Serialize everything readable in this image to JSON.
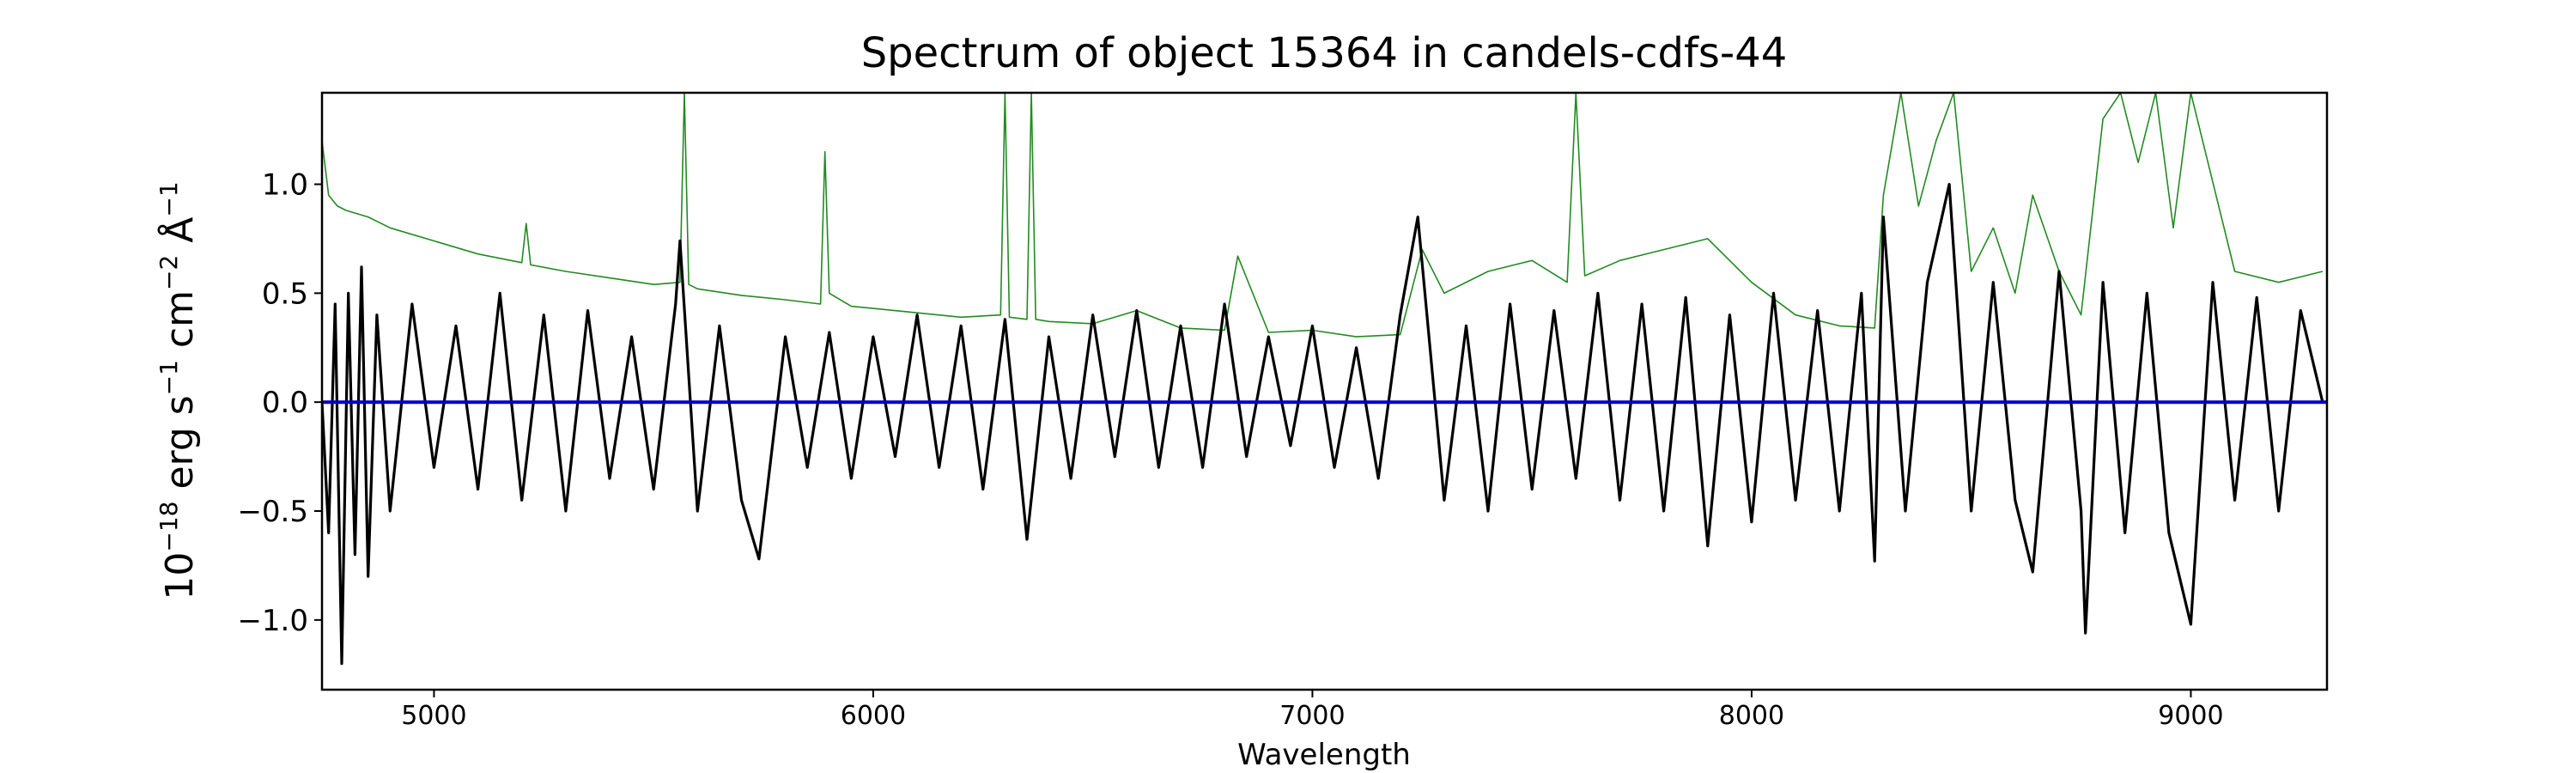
{
  "chart_data": {
    "type": "line",
    "title": "Spectrum of object 15364 in candels-cdfs-44",
    "xlabel": "Wavelength",
    "ylabel": {
      "base": "10",
      "exp1": "−18",
      "mid1": " erg s",
      "exp2": "−1",
      "mid2": " cm",
      "exp3": "−2",
      "mid3": " Å",
      "exp4": "−1"
    },
    "xlim": [
      4745,
      9310
    ],
    "ylim": [
      -1.32,
      1.42
    ],
    "xticks": [
      5000,
      6000,
      7000,
      8000,
      9000
    ],
    "xtick_labels": [
      "5000",
      "6000",
      "7000",
      "8000",
      "9000"
    ],
    "yticks": [
      -1.0,
      -0.5,
      0.0,
      0.5,
      1.0
    ],
    "ytick_labels": [
      "−1.0",
      "−0.5",
      "0.0",
      "0.5",
      "1.0"
    ],
    "grid": false,
    "colors": {
      "flux": "#000000",
      "error": "#228b22",
      "zero": "#0000cc"
    },
    "series": [
      {
        "role": "flux",
        "x": [
          4745,
          4760,
          4775,
          4790,
          4805,
          4820,
          4835,
          4850,
          4870,
          4900,
          4950,
          5000,
          5050,
          5100,
          5150,
          5200,
          5250,
          5300,
          5350,
          5400,
          5450,
          5500,
          5550,
          5560,
          5600,
          5650,
          5700,
          5740,
          5800,
          5850,
          5900,
          5950,
          6000,
          6050,
          6100,
          6150,
          6200,
          6250,
          6300,
          6350,
          6400,
          6450,
          6500,
          6550,
          6600,
          6650,
          6700,
          6750,
          6800,
          6850,
          6900,
          6950,
          7000,
          7050,
          7100,
          7150,
          7200,
          7240,
          7300,
          7350,
          7400,
          7450,
          7500,
          7550,
          7600,
          7650,
          7700,
          7750,
          7800,
          7850,
          7900,
          7950,
          8000,
          8050,
          8100,
          8150,
          8200,
          8250,
          8280,
          8300,
          8350,
          8400,
          8450,
          8500,
          8550,
          8600,
          8640,
          8700,
          8750,
          8760,
          8800,
          8850,
          8900,
          8950,
          9000,
          9050,
          9100,
          9150,
          9200,
          9250,
          9300
        ],
        "y": [
          0.0,
          -0.6,
          0.45,
          -1.2,
          0.5,
          -0.7,
          0.62,
          -0.8,
          0.4,
          -0.5,
          0.45,
          -0.3,
          0.35,
          -0.4,
          0.5,
          -0.45,
          0.4,
          -0.5,
          0.42,
          -0.35,
          0.3,
          -0.4,
          0.45,
          0.74,
          -0.5,
          0.35,
          -0.45,
          -0.72,
          0.3,
          -0.3,
          0.32,
          -0.35,
          0.3,
          -0.25,
          0.4,
          -0.3,
          0.35,
          -0.4,
          0.38,
          -0.63,
          0.3,
          -0.35,
          0.4,
          -0.25,
          0.42,
          -0.3,
          0.35,
          -0.3,
          0.45,
          -0.25,
          0.3,
          -0.2,
          0.35,
          -0.3,
          0.25,
          -0.35,
          0.4,
          0.85,
          -0.45,
          0.35,
          -0.5,
          0.45,
          -0.4,
          0.42,
          -0.35,
          0.5,
          -0.45,
          0.45,
          -0.5,
          0.48,
          -0.66,
          0.4,
          -0.55,
          0.5,
          -0.45,
          0.42,
          -0.5,
          0.5,
          -0.73,
          0.85,
          -0.5,
          0.55,
          1.0,
          -0.5,
          0.55,
          -0.45,
          -0.78,
          0.6,
          -0.5,
          -1.06,
          0.55,
          -0.6,
          0.5,
          -0.6,
          -1.02,
          0.55,
          -0.45,
          0.48,
          -0.5,
          0.42,
          0.0
        ]
      },
      {
        "role": "error",
        "x": [
          4745,
          4760,
          4780,
          4800,
          4850,
          4900,
          5000,
          5100,
          5200,
          5210,
          5220,
          5300,
          5400,
          5500,
          5560,
          5570,
          5580,
          5600,
          5700,
          5800,
          5880,
          5890,
          5900,
          5950,
          6000,
          6100,
          6200,
          6290,
          6300,
          6310,
          6350,
          6360,
          6370,
          6400,
          6500,
          6600,
          6700,
          6800,
          6830,
          6900,
          7000,
          7100,
          7200,
          7250,
          7300,
          7400,
          7500,
          7580,
          7600,
          7620,
          7700,
          7800,
          7900,
          8000,
          8100,
          8200,
          8280,
          8300,
          8340,
          8380,
          8420,
          8460,
          8500,
          8550,
          8600,
          8640,
          8700,
          8750,
          8800,
          8840,
          8880,
          8920,
          8960,
          9000,
          9100,
          9200,
          9300
        ],
        "y": [
          1.2,
          0.95,
          0.9,
          0.88,
          0.85,
          0.8,
          0.74,
          0.68,
          0.64,
          0.82,
          0.63,
          0.6,
          0.57,
          0.54,
          0.55,
          1.42,
          0.54,
          0.52,
          0.49,
          0.47,
          0.45,
          1.15,
          0.5,
          0.44,
          0.43,
          0.41,
          0.39,
          0.4,
          1.42,
          0.39,
          0.38,
          1.42,
          0.38,
          0.37,
          0.36,
          0.42,
          0.34,
          0.33,
          0.67,
          0.32,
          0.33,
          0.3,
          0.31,
          0.7,
          0.5,
          0.6,
          0.65,
          0.55,
          1.42,
          0.58,
          0.65,
          0.7,
          0.75,
          0.55,
          0.4,
          0.35,
          0.34,
          0.95,
          1.42,
          0.9,
          1.2,
          1.42,
          0.6,
          0.8,
          0.5,
          0.95,
          0.6,
          0.4,
          1.3,
          1.42,
          1.1,
          1.42,
          0.8,
          1.42,
          0.6,
          0.55,
          0.6
        ]
      },
      {
        "role": "zero",
        "x": [
          4745,
          9310
        ],
        "y": [
          0.0,
          0.0
        ]
      }
    ]
  }
}
